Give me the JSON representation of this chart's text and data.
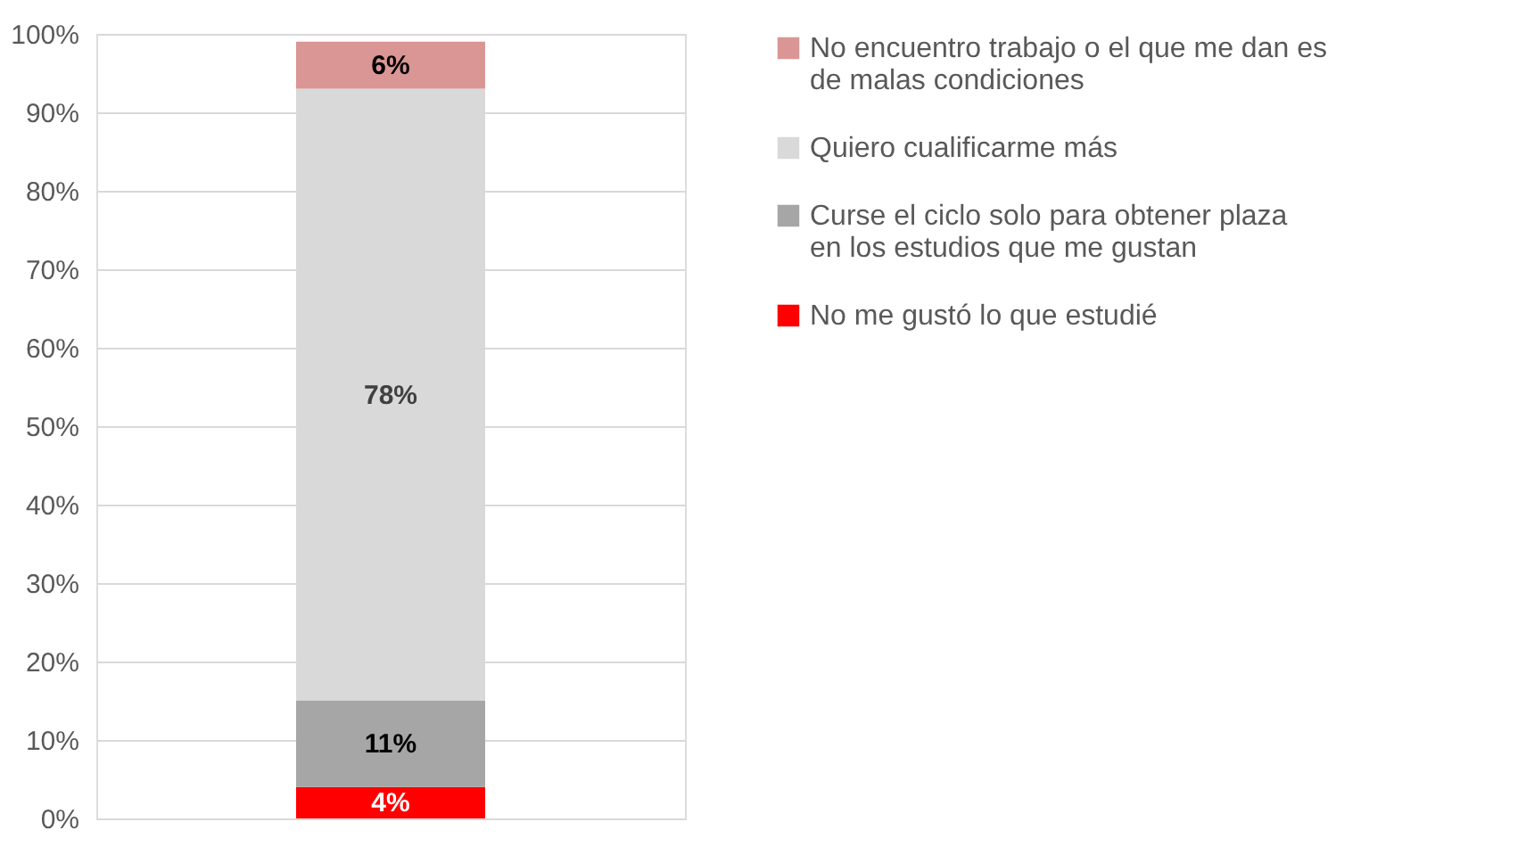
{
  "chart_data": {
    "type": "bar",
    "stacked": true,
    "categories": [
      null
    ],
    "series": [
      {
        "name": "No me gustó lo que estudié",
        "color": "#ff0000",
        "values": [
          4
        ],
        "value_labels": [
          "4%"
        ]
      },
      {
        "name": "Curse el ciclo solo para obtener plaza en los estudios que me gustan",
        "color": "#a6a6a6",
        "values": [
          11
        ],
        "value_labels": [
          "11%"
        ]
      },
      {
        "name": "Quiero cualificarme más",
        "color": "#d9d9d9",
        "values": [
          78
        ],
        "value_labels": [
          "78%"
        ]
      },
      {
        "name": "No encuentro trabajo o el que me dan es de  malas condiciones",
        "color": "#da9694",
        "values": [
          6
        ],
        "value_labels": [
          "6%"
        ]
      }
    ],
    "ylim": [
      0,
      100
    ],
    "yticks": [
      {
        "value": 0,
        "label": "0%"
      },
      {
        "value": 10,
        "label": "10%"
      },
      {
        "value": 20,
        "label": "20%"
      },
      {
        "value": 30,
        "label": "30%"
      },
      {
        "value": 40,
        "label": "40%"
      },
      {
        "value": 50,
        "label": "50%"
      },
      {
        "value": 60,
        "label": "60%"
      },
      {
        "value": 70,
        "label": "70%"
      },
      {
        "value": 80,
        "label": "80%"
      },
      {
        "value": 90,
        "label": "90%"
      },
      {
        "value": 100,
        "label": "100%"
      }
    ],
    "grid": "y",
    "legend": "right",
    "tick_labels": "y"
  }
}
